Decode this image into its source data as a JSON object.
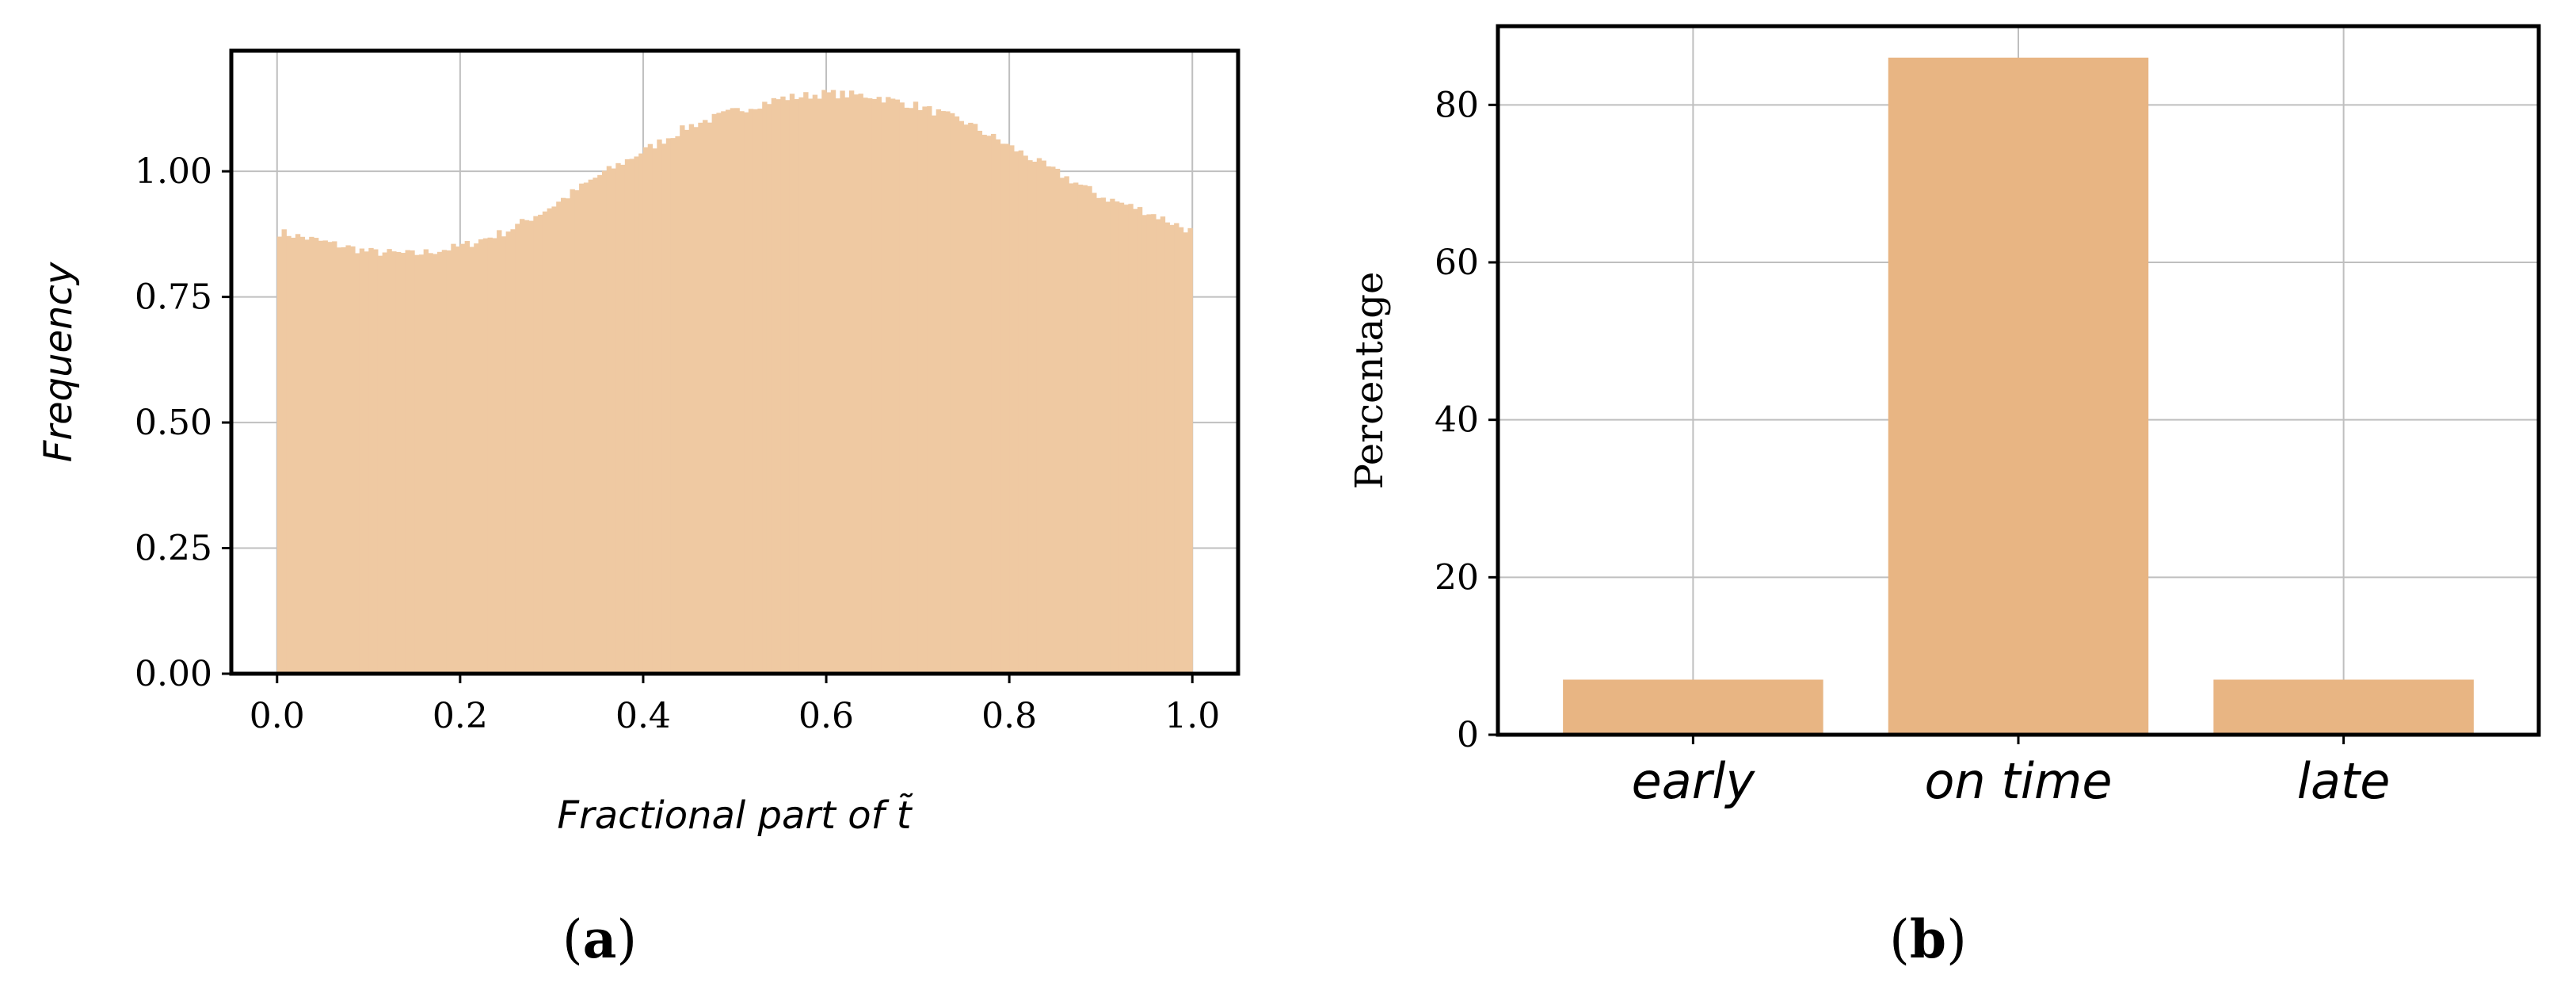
{
  "colors": {
    "histogram_fill": "#efc9a2",
    "bar_fill": "#e8b583",
    "axis": "#000000",
    "grid": "#bfbfbf"
  },
  "panels": {
    "a": {
      "caption_open": "(",
      "caption_letter": "a",
      "caption_close": ")"
    },
    "b": {
      "caption_open": "(",
      "caption_letter": "b",
      "caption_close": ")"
    }
  },
  "chart_data": [
    {
      "type": "bar",
      "subtype": "histogram",
      "xlabel": "Fractional part of t̃",
      "ylabel": "Frequency",
      "xlim": [
        -0.05,
        1.05
      ],
      "ylim": [
        0,
        1.24
      ],
      "xticks": [
        0.0,
        0.2,
        0.4,
        0.6,
        0.8,
        1.0
      ],
      "xtick_labels": [
        "0.0",
        "0.2",
        "0.4",
        "0.6",
        "0.8",
        "1.0"
      ],
      "yticks": [
        0.0,
        0.25,
        0.5,
        0.75,
        1.0
      ],
      "ytick_labels": [
        "0.00",
        "0.25",
        "0.50",
        "0.75",
        "1.00"
      ],
      "grid": true,
      "bin_range": [
        0.0,
        1.0
      ],
      "density_profile": {
        "x": [
          0.0,
          0.05,
          0.1,
          0.15,
          0.2,
          0.25,
          0.3,
          0.35,
          0.4,
          0.45,
          0.5,
          0.55,
          0.6,
          0.65,
          0.7,
          0.75,
          0.8,
          0.85,
          0.9,
          0.95,
          1.0
        ],
        "y": [
          0.88,
          0.86,
          0.84,
          0.835,
          0.85,
          0.88,
          0.93,
          0.99,
          1.04,
          1.09,
          1.12,
          1.145,
          1.155,
          1.15,
          1.13,
          1.1,
          1.05,
          1.0,
          0.95,
          0.92,
          0.88
        ]
      }
    },
    {
      "type": "bar",
      "categories": [
        "early",
        "on time",
        "late"
      ],
      "values": [
        7,
        86,
        7
      ],
      "ylabel": "Percentage",
      "xlabel": "",
      "ylim": [
        0,
        90
      ],
      "yticks": [
        0,
        20,
        40,
        60,
        80
      ],
      "ytick_labels": [
        "0",
        "20",
        "40",
        "60",
        "80"
      ],
      "grid": true
    }
  ]
}
